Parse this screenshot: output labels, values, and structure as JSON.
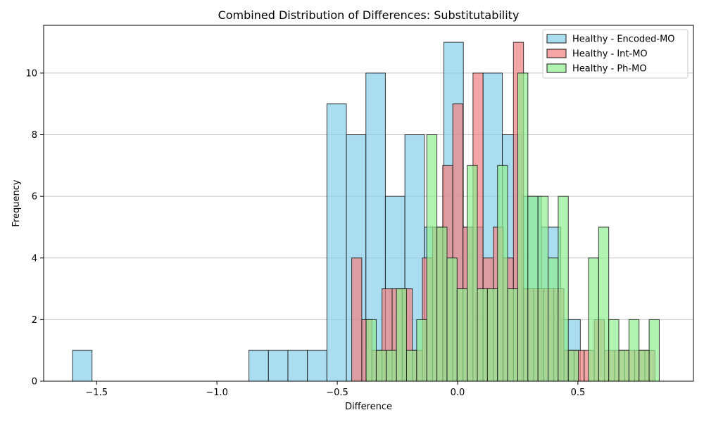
{
  "chart_data": {
    "type": "bar",
    "title": "Combined Distribution of Differences: Substitutability",
    "xlabel": "Difference",
    "ylabel": "Frequency",
    "xlim": [
      -1.72,
      0.98
    ],
    "ylim": [
      0,
      11.55
    ],
    "xticks": [
      -1.5,
      -1.0,
      -0.5,
      0.0,
      0.5
    ],
    "xtick_labels": [
      "−1.5",
      "−1.0",
      "−0.5",
      "0.0",
      "0.5"
    ],
    "yticks": [
      0,
      2,
      4,
      6,
      8,
      10
    ],
    "ytick_labels": [
      "0",
      "2",
      "4",
      "6",
      "8",
      "10"
    ],
    "grid": "y",
    "legend_position": "top-right",
    "series": [
      {
        "name": "Healthy - Encoded-MO",
        "color": "#87ceeb",
        "bin_width": 0.081,
        "bin_starts": [
          -1.6,
          -0.867,
          -0.786,
          -0.705,
          -0.624,
          -0.543,
          -0.462,
          -0.381,
          -0.3,
          -0.219,
          -0.138,
          -0.057,
          0.024,
          0.105,
          0.186,
          0.267,
          0.348,
          0.429
        ],
        "values": [
          1,
          1,
          1,
          1,
          1,
          9,
          8,
          10,
          6,
          8,
          5,
          11,
          5,
          10,
          8,
          6,
          5,
          2
        ]
      },
      {
        "name": "Healthy - Int-MO",
        "color": "#f08080",
        "bin_width": 0.042,
        "bin_starts": [
          -0.44,
          -0.398,
          -0.356,
          -0.314,
          -0.272,
          -0.23,
          -0.188,
          -0.146,
          -0.104,
          -0.062,
          -0.02,
          0.022,
          0.064,
          0.106,
          0.148,
          0.19,
          0.232,
          0.274,
          0.316,
          0.358,
          0.4,
          0.442,
          0.484,
          0.526,
          0.568,
          0.61,
          0.652,
          0.694,
          0.736,
          0.778
        ],
        "values": [
          4,
          2,
          1,
          3,
          3,
          3,
          1,
          4,
          5,
          7,
          9,
          5,
          10,
          4,
          5,
          4,
          11,
          3,
          3,
          3,
          3,
          1,
          1,
          1,
          2,
          1,
          1,
          1,
          1,
          1
        ]
      },
      {
        "name": "Healthy - Ph-MO",
        "color": "#90ee90",
        "bin_width": 0.042,
        "bin_starts": [
          -0.38,
          -0.338,
          -0.296,
          -0.254,
          -0.212,
          -0.17,
          -0.128,
          -0.086,
          -0.044,
          -0.002,
          0.04,
          0.082,
          0.124,
          0.166,
          0.208,
          0.25,
          0.292,
          0.334,
          0.376,
          0.418,
          0.46,
          0.502,
          0.544,
          0.586,
          0.628,
          0.67,
          0.712,
          0.754,
          0.796
        ],
        "values": [
          2,
          1,
          1,
          3,
          1,
          2,
          8,
          5,
          4,
          3,
          7,
          3,
          3,
          7,
          3,
          10,
          6,
          6,
          4,
          6,
          1,
          0,
          4,
          5,
          2,
          1,
          2,
          1,
          2
        ]
      }
    ]
  }
}
